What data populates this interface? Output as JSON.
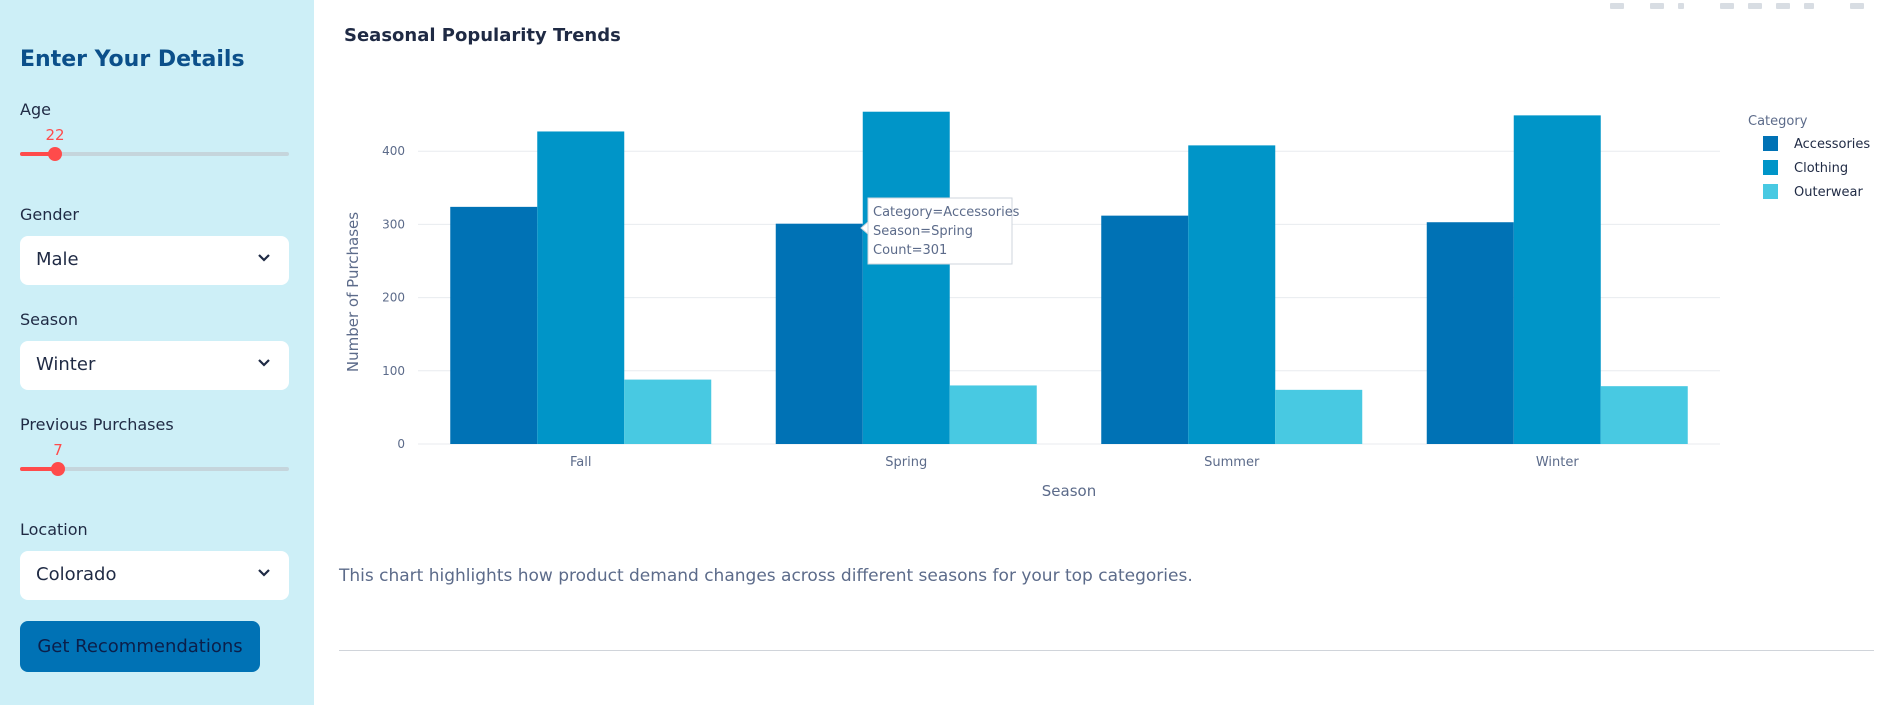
{
  "sidebar": {
    "title": "Enter Your Details",
    "age": {
      "label": "Age",
      "value": "22",
      "fraction": 0.13
    },
    "gender": {
      "label": "Gender",
      "value": "Male"
    },
    "season": {
      "label": "Season",
      "value": "Winter"
    },
    "previous_purchases": {
      "label": "Previous Purchases",
      "value": "7",
      "fraction": 0.14
    },
    "location": {
      "label": "Location",
      "value": "Colorado"
    },
    "button_label": "Get Recommendations"
  },
  "main": {
    "chart_title": "Seasonal Popularity Trends",
    "caption": "This chart highlights how product demand changes across different seasons for your top categories."
  },
  "colors": {
    "accessories": "#0072b5",
    "clothing": "#0095c8",
    "outerwear": "#48c9e2",
    "slider_accent": "#ff4b4b",
    "sidebar_bg": "#cdeff7"
  },
  "chart_data": {
    "type": "bar",
    "title": "Seasonal Popularity Trends",
    "xlabel": "Season",
    "ylabel": "Number of Purchases",
    "categories": [
      "Fall",
      "Spring",
      "Summer",
      "Winter"
    ],
    "series": [
      {
        "name": "Accessories",
        "values": [
          324,
          301,
          312,
          303
        ]
      },
      {
        "name": "Clothing",
        "values": [
          427,
          454,
          408,
          449
        ]
      },
      {
        "name": "Outerwear",
        "values": [
          88,
          80,
          74,
          79
        ]
      }
    ],
    "ylim": [
      0,
      470
    ],
    "yticks": [
      0,
      100,
      200,
      300,
      400
    ],
    "grid": true,
    "legend_title": "Category",
    "legend_position": "top-right",
    "tooltip": {
      "lines": [
        "Category=Accessories",
        "Season=Spring",
        "Count=301"
      ]
    }
  }
}
